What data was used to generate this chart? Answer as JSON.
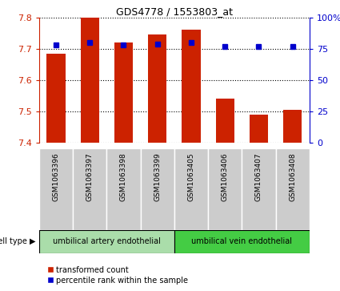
{
  "title": "GDS4778 / 1553803_at",
  "samples": [
    "GSM1063396",
    "GSM1063397",
    "GSM1063398",
    "GSM1063399",
    "GSM1063405",
    "GSM1063406",
    "GSM1063407",
    "GSM1063408"
  ],
  "bar_values": [
    7.685,
    7.8,
    7.72,
    7.745,
    7.76,
    7.54,
    7.49,
    7.505
  ],
  "percentile_values": [
    78,
    80,
    78,
    79,
    80,
    77,
    77,
    77
  ],
  "ylim_left": [
    7.4,
    7.8
  ],
  "ylim_right": [
    0,
    100
  ],
  "yticks_left": [
    7.4,
    7.5,
    7.6,
    7.7,
    7.8
  ],
  "yticks_right": [
    0,
    25,
    50,
    75,
    100
  ],
  "ytick_labels_right": [
    "0",
    "25",
    "50",
    "75",
    "100%"
  ],
  "bar_color": "#cc2200",
  "percentile_color": "#0000cc",
  "grid_color": "#000000",
  "cell_type_groups": [
    {
      "label": "umbilical artery endothelial",
      "start": 0,
      "end": 3,
      "color": "#aaddaa"
    },
    {
      "label": "umbilical vein endothelial",
      "start": 4,
      "end": 7,
      "color": "#44cc44"
    }
  ],
  "cell_type_label": "cell type",
  "legend_items": [
    {
      "label": "transformed count",
      "color": "#cc2200"
    },
    {
      "label": "percentile rank within the sample",
      "color": "#0000cc"
    }
  ],
  "bar_width": 0.55,
  "base_value": 7.4,
  "xlabel_bg_color": "#cccccc",
  "plot_bg_color": "#ffffff"
}
